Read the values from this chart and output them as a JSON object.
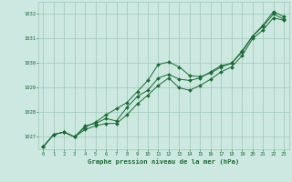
{
  "background_color": "#cce8e0",
  "plot_bg_color": "#cce8e0",
  "grid_color": "#a0c8b8",
  "line_color": "#1a6b35",
  "marker_color": "#1a6b35",
  "xlabel": "Graphe pression niveau de la mer (hPa)",
  "xlabel_color": "#1a6b35",
  "tick_color": "#1a6b35",
  "xlim": [
    -0.5,
    23.5
  ],
  "ylim": [
    1026.5,
    1032.5
  ],
  "yticks": [
    1027,
    1028,
    1029,
    1030,
    1031,
    1032
  ],
  "xticks": [
    0,
    1,
    2,
    3,
    4,
    5,
    6,
    7,
    8,
    9,
    10,
    11,
    12,
    13,
    14,
    15,
    16,
    17,
    18,
    19,
    20,
    21,
    22,
    23
  ],
  "series1_y": [
    1026.6,
    1027.1,
    1027.2,
    1027.0,
    1027.4,
    1027.6,
    1027.9,
    1028.15,
    1028.4,
    1028.85,
    1029.3,
    1029.95,
    1030.05,
    1029.85,
    1029.5,
    1029.45,
    1029.6,
    1029.85,
    1030.0,
    1030.45,
    1031.1,
    1031.55,
    1032.1,
    1031.9
  ],
  "series2_y": [
    1026.6,
    1027.1,
    1027.2,
    1027.0,
    1027.45,
    1027.55,
    1027.75,
    1027.65,
    1028.2,
    1028.65,
    1028.9,
    1029.4,
    1029.55,
    1029.35,
    1029.3,
    1029.4,
    1029.65,
    1029.9,
    1030.0,
    1030.5,
    1031.1,
    1031.5,
    1032.0,
    1031.8
  ],
  "series3_y": [
    1026.6,
    1027.1,
    1027.2,
    1027.0,
    1027.3,
    1027.45,
    1027.55,
    1027.55,
    1027.9,
    1028.35,
    1028.7,
    1029.1,
    1029.4,
    1029.0,
    1028.9,
    1029.1,
    1029.35,
    1029.65,
    1029.85,
    1030.3,
    1031.0,
    1031.35,
    1031.85,
    1031.75
  ]
}
